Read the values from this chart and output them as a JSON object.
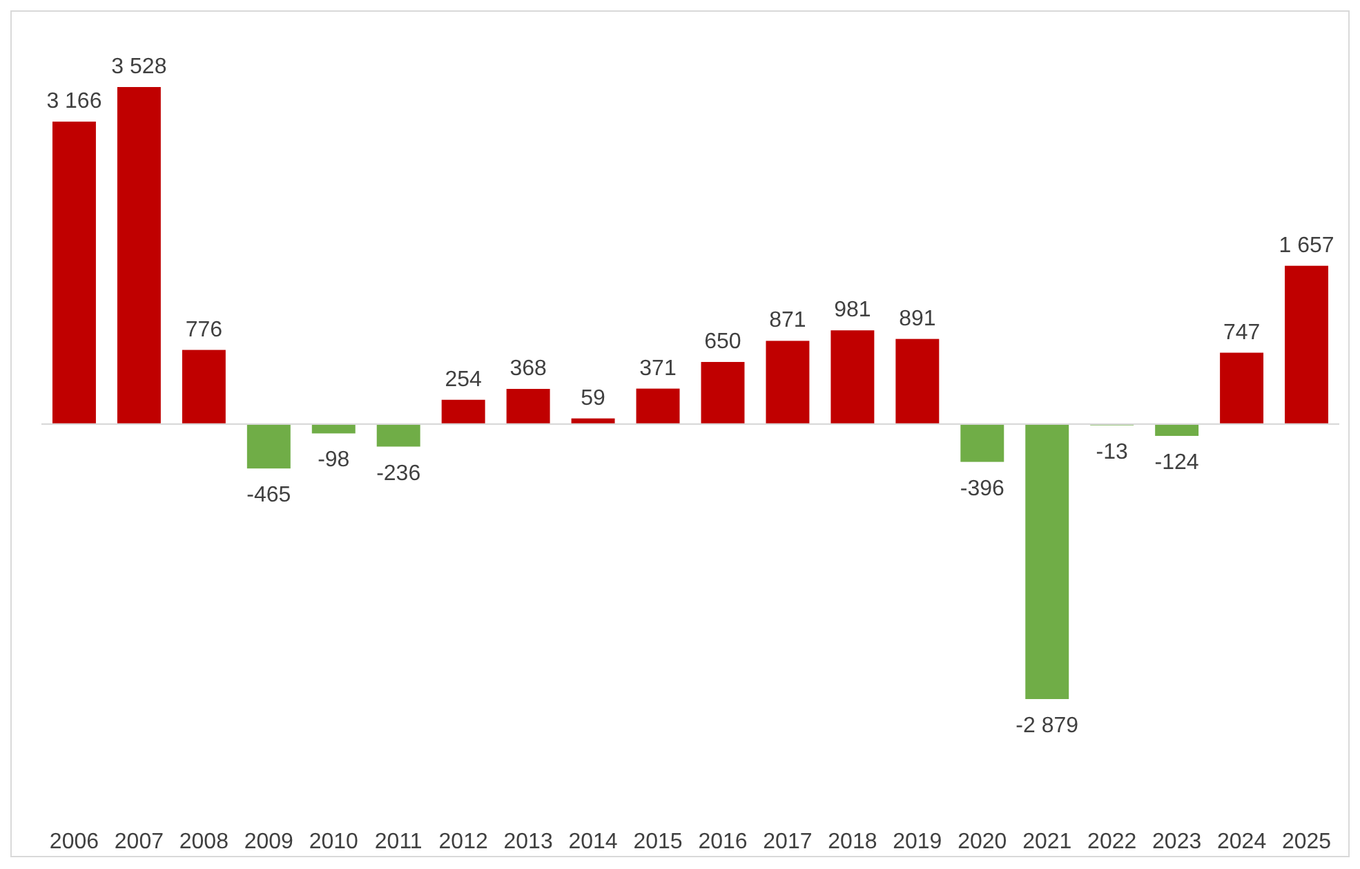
{
  "chart_data": {
    "type": "bar",
    "categories": [
      "2006",
      "2007",
      "2008",
      "2009",
      "2010",
      "2011",
      "2012",
      "2013",
      "2014",
      "2015",
      "2016",
      "2017",
      "2018",
      "2019",
      "2020",
      "2021",
      "2022",
      "2023",
      "2024",
      "2025"
    ],
    "values": [
      3166,
      3528,
      776,
      -465,
      -98,
      -236,
      254,
      368,
      59,
      371,
      650,
      871,
      981,
      891,
      -396,
      -2879,
      -13,
      -124,
      747,
      1657
    ],
    "colors": [
      "#c00000",
      "#c00000",
      "#c00000",
      "#70ad47",
      "#70ad47",
      "#70ad47",
      "#c00000",
      "#c00000",
      "#c00000",
      "#c00000",
      "#c00000",
      "#c00000",
      "#c00000",
      "#c00000",
      "#70ad47",
      "#70ad47",
      "#70ad47",
      "#70ad47",
      "#c00000",
      "#c00000"
    ],
    "value_labels": [
      "3 166",
      "3 528",
      "776",
      "-465",
      "-98",
      "-236",
      "254",
      "368",
      "59",
      "371",
      "650",
      "871",
      "981",
      "891",
      "-396",
      "-2 879",
      "-13",
      "-124",
      "747",
      "1 657"
    ]
  }
}
